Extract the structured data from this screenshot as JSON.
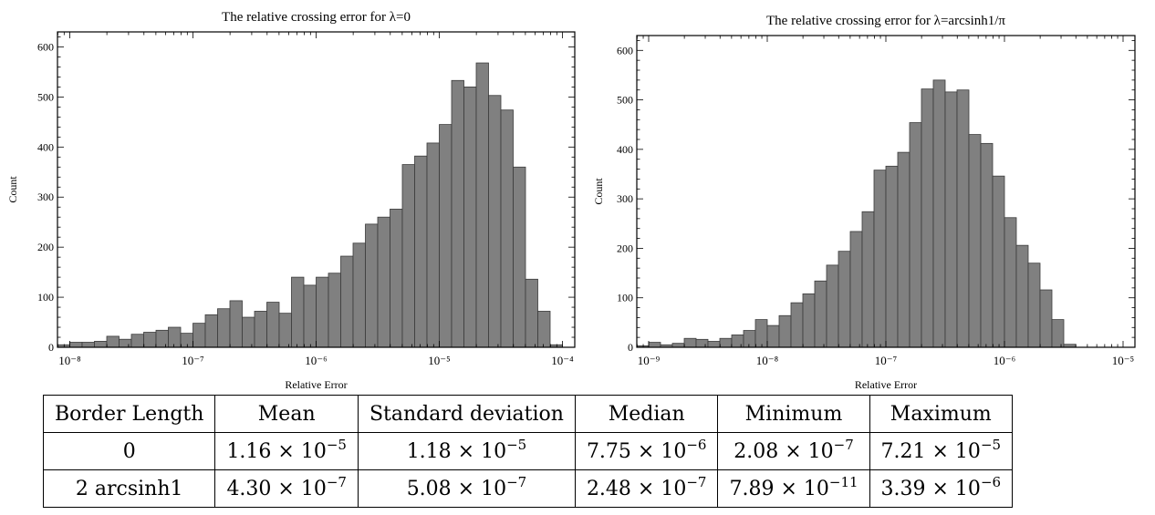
{
  "chart_data": [
    {
      "type": "bar",
      "title": "The relative crossing error for λ=0",
      "xlabel": "Relative Error",
      "ylabel": "Count",
      "x_scale": "log",
      "xlim": [
        -8.1,
        -3.9
      ],
      "ylim": [
        0,
        630
      ],
      "xticks": [
        -8,
        -7,
        -6,
        -5,
        -4
      ],
      "xtick_labels": [
        "10⁻⁸",
        "10⁻⁷",
        "10⁻⁶",
        "10⁻⁵",
        "10⁻⁴"
      ],
      "yticks": [
        0,
        100,
        200,
        300,
        400,
        500,
        600
      ],
      "bin_width_log10": 0.1,
      "bin_start_log10": -8.1,
      "values": [
        5,
        10,
        10,
        12,
        22,
        16,
        26,
        30,
        34,
        40,
        28,
        48,
        65,
        77,
        93,
        60,
        72,
        90,
        68,
        140,
        124,
        140,
        148,
        182,
        208,
        246,
        260,
        276,
        365,
        382,
        408,
        445,
        533,
        520,
        568,
        503,
        474,
        360,
        136,
        72,
        5
      ],
      "color": "#808080"
    },
    {
      "type": "bar",
      "title": "The relative crossing error for λ=arcsinh1/π",
      "xlabel": "Relative Error",
      "ylabel": "Count",
      "x_scale": "log",
      "xlim": [
        -9.1,
        -4.9
      ],
      "ylim": [
        0,
        630
      ],
      "xticks": [
        -9,
        -8,
        -7,
        -6,
        -5
      ],
      "xtick_labels": [
        "10⁻⁹",
        "10⁻⁸",
        "10⁻⁷",
        "10⁻⁶",
        "10⁻⁵"
      ],
      "yticks": [
        0,
        100,
        200,
        300,
        400,
        500,
        600
      ],
      "bin_width_log10": 0.1,
      "bin_start_log10": -9.1,
      "values": [
        3,
        10,
        5,
        8,
        18,
        16,
        12,
        18,
        25,
        34,
        56,
        44,
        64,
        90,
        108,
        134,
        166,
        194,
        234,
        274,
        358,
        366,
        394,
        454,
        522,
        540,
        516,
        520,
        430,
        412,
        346,
        262,
        206,
        170,
        116,
        56,
        6
      ],
      "color": "#808080"
    }
  ],
  "table": {
    "headers": [
      "Border Length",
      "Mean",
      "Standard deviation",
      "Median",
      "Minimum",
      "Maximum"
    ],
    "rows": [
      {
        "border": "0",
        "cells": [
          [
            "1.16 × 10",
            "−5"
          ],
          [
            "1.18 × 10",
            "−5"
          ],
          [
            "7.75 × 10",
            "−6"
          ],
          [
            "2.08 × 10",
            "−7"
          ],
          [
            "7.21 × 10",
            "−5"
          ]
        ]
      },
      {
        "border": "2 arcsinh1",
        "cells": [
          [
            "4.30 × 10",
            "−7"
          ],
          [
            "5.08 × 10",
            "−7"
          ],
          [
            "2.48 × 10",
            "−7"
          ],
          [
            "7.89 × 10",
            "−11"
          ],
          [
            "3.39 × 10",
            "−6"
          ]
        ]
      }
    ]
  }
}
